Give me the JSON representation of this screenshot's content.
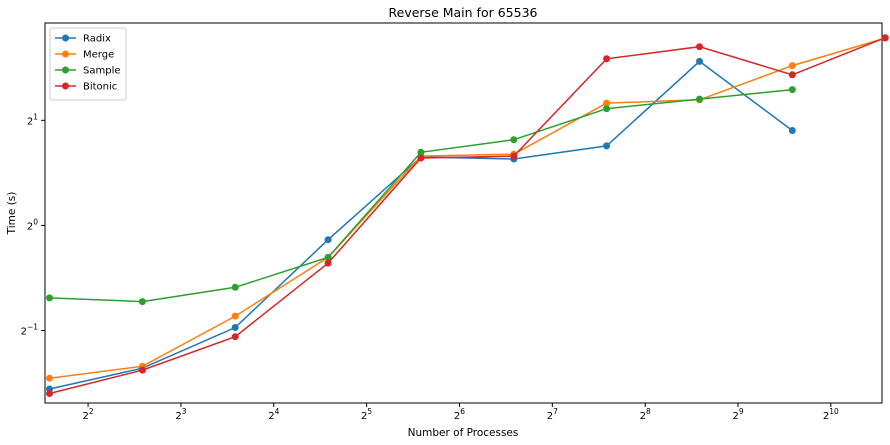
{
  "chart_data": {
    "type": "line",
    "title": "Reverse Main for 65536",
    "xlabel": "Number of Processes",
    "ylabel": "Time (s)",
    "x_scale": "log2",
    "y_scale": "log2",
    "xlim": [
      2.9,
      1500
    ],
    "ylim": [
      0.31,
      3.8
    ],
    "grid": false,
    "legend_position": "top-left",
    "x_ticks": [
      {
        "value": 4,
        "base": "2",
        "exp": "2"
      },
      {
        "value": 8,
        "base": "2",
        "exp": "3"
      },
      {
        "value": 16,
        "base": "2",
        "exp": "4"
      },
      {
        "value": 32,
        "base": "2",
        "exp": "5"
      },
      {
        "value": 64,
        "base": "2",
        "exp": "6"
      },
      {
        "value": 128,
        "base": "2",
        "exp": "7"
      },
      {
        "value": 256,
        "base": "2",
        "exp": "8"
      },
      {
        "value": 512,
        "base": "2",
        "exp": "9"
      },
      {
        "value": 1024,
        "base": "2",
        "exp": "10"
      }
    ],
    "y_ticks": [
      {
        "value": 0.5,
        "base": "2",
        "exp": "−1"
      },
      {
        "value": 1,
        "base": "2",
        "exp": "0"
      },
      {
        "value": 2,
        "base": "2",
        "exp": "1"
      }
    ],
    "x": [
      3,
      6,
      12,
      24,
      48,
      96,
      192,
      384,
      768,
      1536
    ],
    "series": [
      {
        "name": "Radix",
        "color": "#1f77b4",
        "values": [
          0.34,
          0.39,
          0.51,
          0.91,
          1.57,
          1.55,
          1.69,
          2.95,
          1.87,
          null
        ]
      },
      {
        "name": "Merge",
        "color": "#ff7f0e",
        "values": [
          0.365,
          0.395,
          0.55,
          0.81,
          1.58,
          1.6,
          2.24,
          2.29,
          2.87,
          3.44
        ]
      },
      {
        "name": "Sample",
        "color": "#2ca02c",
        "values": [
          0.62,
          0.605,
          0.665,
          0.81,
          1.62,
          1.76,
          2.16,
          2.3,
          2.45,
          null
        ]
      },
      {
        "name": "Bitonic",
        "color": "#d62728",
        "values": [
          0.33,
          0.385,
          0.48,
          0.78,
          1.56,
          1.58,
          3.0,
          3.25,
          2.7,
          3.45
        ]
      }
    ]
  }
}
